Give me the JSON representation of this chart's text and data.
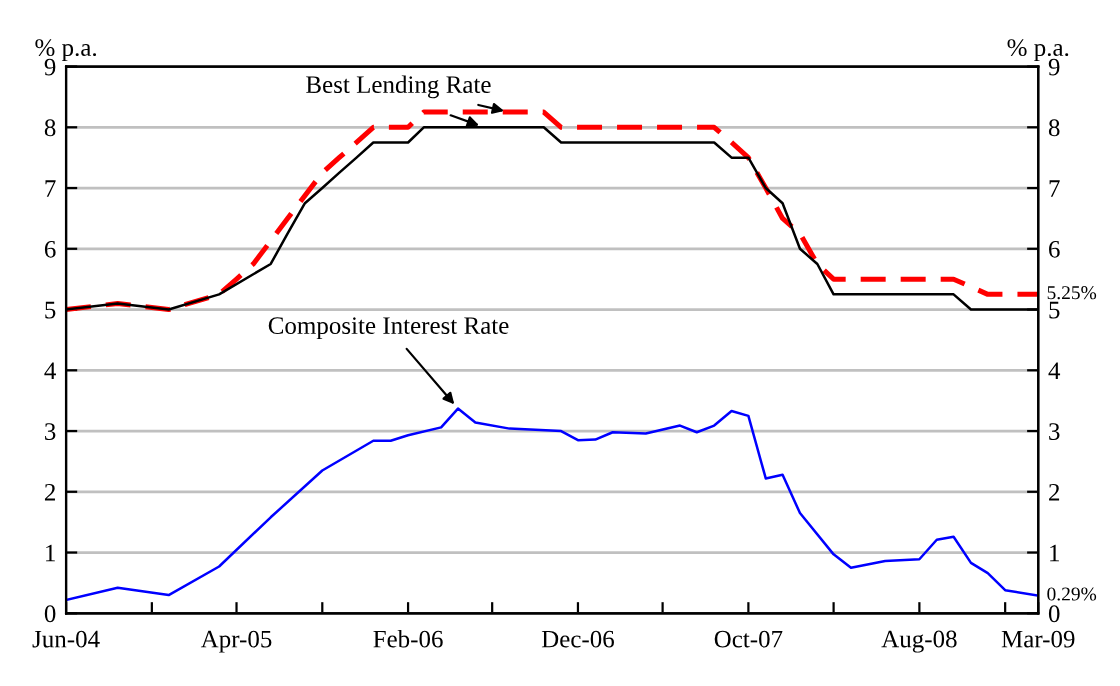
{
  "chart_data": {
    "type": "line",
    "ylabel": "% p.a.",
    "y2label": "% p.a.",
    "series": [
      {
        "color": "#000000",
        "line_style": "solid",
        "x": [
          "2004-06",
          "2004-09",
          "2004-12",
          "2005-03",
          "2005-06",
          "2005-07",
          "2005-08",
          "2005-09",
          "2005-10",
          "2005-11",
          "2005-12",
          "2006-02",
          "2006-03",
          "2006-10",
          "2006-11",
          "2007-08",
          "2007-09",
          "2007-10",
          "2007-11",
          "2007-12",
          "2008-01",
          "2008-02",
          "2008-03",
          "2008-10",
          "2008-11",
          "2009-03"
        ],
        "values": [
          5.0,
          5.1,
          5.0,
          5.25,
          5.75,
          6.25,
          6.75,
          7.0,
          7.25,
          7.5,
          7.75,
          7.75,
          8.0,
          8.0,
          7.75,
          7.75,
          7.5,
          7.5,
          7.0,
          6.75,
          6.0,
          5.75,
          5.25,
          5.25,
          5.0,
          5.0
        ]
      },
      {
        "color": "#ff0000",
        "line_style": "dashed",
        "x": [
          "2004-06",
          "2004-09",
          "2004-12",
          "2005-03",
          "2005-04",
          "2005-05",
          "2005-07",
          "2005-09",
          "2005-10",
          "2005-11",
          "2005-12",
          "2006-02",
          "2006-03",
          "2006-10",
          "2006-11",
          "2007-08",
          "2007-09",
          "2007-10",
          "2007-11",
          "2007-12",
          "2008-01",
          "2008-02",
          "2008-03",
          "2008-10",
          "2008-12",
          "2009-03"
        ],
        "values": [
          5.0,
          5.1,
          5.0,
          5.25,
          5.5,
          5.75,
          6.5,
          7.25,
          7.5,
          7.75,
          8.0,
          8.0,
          8.25,
          8.25,
          8.0,
          8.0,
          7.75,
          7.5,
          7.0,
          6.5,
          6.25,
          5.75,
          5.5,
          5.5,
          5.25,
          5.25
        ]
      },
      {
        "color": "#0000ff",
        "line_style": "solid",
        "x": [
          "2004-06",
          "2004-09",
          "2004-12",
          "2005-03",
          "2005-06",
          "2005-09",
          "2005-12",
          "2006-01",
          "2006-02",
          "2006-04",
          "2006-05",
          "2006-06",
          "2006-08",
          "2006-11",
          "2006-12",
          "2007-01",
          "2007-02",
          "2007-04",
          "2007-06",
          "2007-07",
          "2007-08",
          "2007-09",
          "2007-10",
          "2007-11",
          "2007-12",
          "2008-01",
          "2008-03",
          "2008-04",
          "2008-06",
          "2008-08",
          "2008-09",
          "2008-10",
          "2008-11",
          "2008-12",
          "2009-01",
          "2009-03"
        ],
        "values": [
          0.22,
          0.42,
          0.3,
          0.77,
          1.58,
          2.35,
          2.84,
          2.84,
          2.93,
          3.06,
          3.37,
          3.14,
          3.04,
          3.0,
          2.85,
          2.86,
          2.98,
          2.96,
          3.09,
          2.98,
          3.09,
          3.33,
          3.25,
          2.22,
          2.28,
          1.65,
          0.97,
          0.75,
          0.86,
          0.89,
          1.21,
          1.26,
          0.83,
          0.66,
          0.38,
          0.29
        ]
      }
    ],
    "xlim": [
      "2004-06",
      "2009-03"
    ],
    "xticks": [
      {
        "value": "2004-06",
        "label": "Jun-04"
      },
      {
        "value": "2004-11",
        "label": null
      },
      {
        "value": "2005-04",
        "label": "Apr-05"
      },
      {
        "value": "2005-09",
        "label": null
      },
      {
        "value": "2006-02",
        "label": "Feb-06"
      },
      {
        "value": "2006-07",
        "label": null
      },
      {
        "value": "2006-12",
        "label": "Dec-06"
      },
      {
        "value": "2007-05",
        "label": null
      },
      {
        "value": "2007-10",
        "label": "Oct-07"
      },
      {
        "value": "2008-03",
        "label": null
      },
      {
        "value": "2008-08",
        "label": "Aug-08"
      },
      {
        "value": "2009-01",
        "label": null
      },
      {
        "value": "2009-03",
        "label": "Mar-09"
      }
    ],
    "ylim": [
      0,
      9
    ],
    "yticks": [
      0,
      1,
      2,
      3,
      4,
      5,
      6,
      7,
      8,
      9
    ],
    "y2lim": [
      0,
      9
    ],
    "y2ticks": [
      0,
      1,
      2,
      3,
      4,
      5,
      6,
      7,
      8,
      9
    ],
    "grid": "y",
    "legend": false,
    "annotations": [
      {
        "text": "Best Lending Rate",
        "x": "2006-08",
        "y": 8.25
      },
      {
        "text": "Composite Interest Rate",
        "x": "2006-05",
        "y": 3.37
      },
      {
        "text": "5.25%",
        "x": "2009-03",
        "y": 5.25
      },
      {
        "text": "0.29%",
        "x": "2009-03",
        "y": 0.29
      }
    ]
  }
}
